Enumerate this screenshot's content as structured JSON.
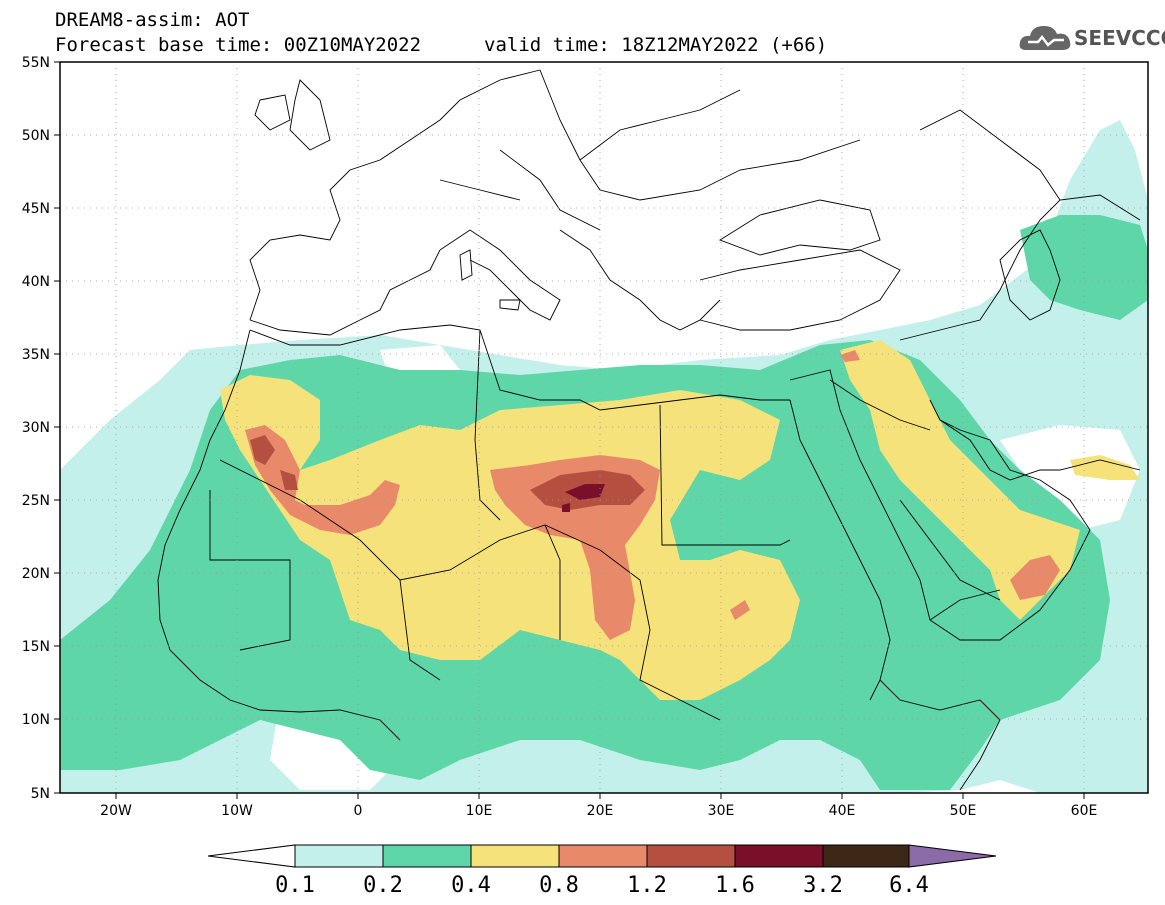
{
  "header": {
    "title": "DREAM8-assim: AOT",
    "base_time": "Forecast base time: 00Z10MAY2022",
    "valid_time": "valid time: 18Z12MAY2022 (+66)",
    "logo_text": "SEEVCCC"
  },
  "map": {
    "lat_labels": [
      "55N",
      "50N",
      "45N",
      "40N",
      "35N",
      "30N",
      "25N",
      "20N",
      "15N",
      "10N",
      "5N"
    ],
    "lon_labels": [
      "20W",
      "10W",
      "0",
      "10E",
      "20E",
      "30E",
      "40E",
      "50E",
      "60E"
    ],
    "lon_range": [
      -25,
      65
    ],
    "lat_range": [
      5,
      55
    ]
  },
  "colorbar": {
    "labels": [
      "0.1",
      "0.2",
      "0.4",
      "0.8",
      "1.2",
      "1.6",
      "3.2",
      "6.4"
    ],
    "colors": [
      "#ffffff",
      "#c4f0ec",
      "#5ed6a8",
      "#f6e27a",
      "#e8896a",
      "#b55040",
      "#7a0f2a",
      "#3d2818",
      "#8c6aa8"
    ]
  }
}
